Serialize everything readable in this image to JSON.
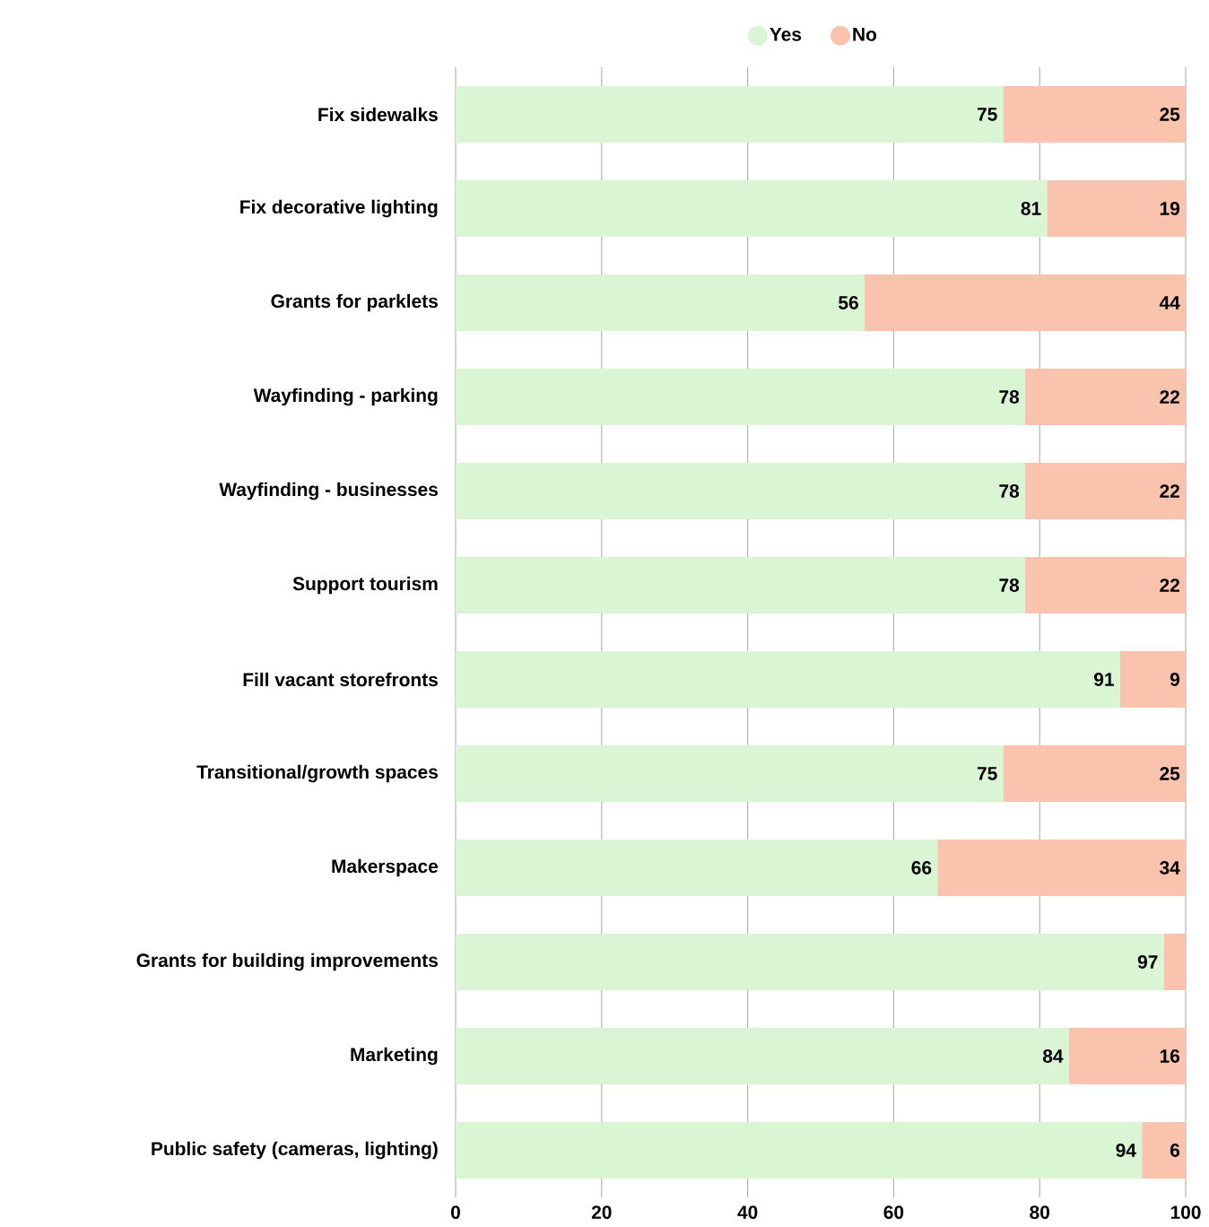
{
  "chart_data": {
    "type": "bar",
    "orientation": "horizontal",
    "stacked": true,
    "categories": [
      "Fix sidewalks",
      "Fix decorative lighting",
      "Grants for parklets",
      "Wayfinding - parking",
      "Wayfinding - businesses",
      "Support tourism",
      "Fill vacant storefronts",
      "Transitional/growth spaces",
      "Makerspace",
      "Grants for building improvements",
      "Marketing",
      "Public safety (cameras, lighting)"
    ],
    "series": [
      {
        "name": "Yes",
        "color": "#d9f5d3",
        "values": [
          75,
          81,
          56,
          78,
          78,
          78,
          91,
          75,
          66,
          97,
          84,
          94
        ],
        "value_labels": [
          "75",
          "81",
          "56",
          "78",
          "78",
          "78",
          "91",
          "75",
          "66",
          "97",
          "84",
          "94"
        ]
      },
      {
        "name": "No",
        "color": "#f9c3ad",
        "values": [
          25,
          19,
          44,
          22,
          22,
          22,
          9,
          25,
          34,
          3,
          16,
          6
        ],
        "value_labels": [
          "25",
          "19",
          "44",
          "22",
          "22",
          "22",
          "9",
          "25",
          "34",
          null,
          "16",
          "6"
        ]
      }
    ],
    "xlim": [
      0,
      100
    ],
    "xticks": [
      0,
      20,
      40,
      60,
      80,
      100
    ],
    "grid": "x",
    "legend": "top"
  }
}
